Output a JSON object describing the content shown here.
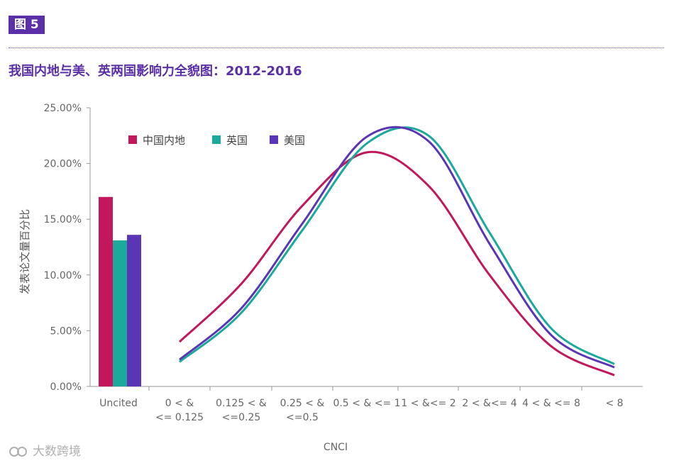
{
  "header": {
    "figure_label": "图 5",
    "title": "我国内地与美、英两国影响力全貌图：2012-2016"
  },
  "watermark": {
    "text": "大数跨境"
  },
  "colors": {
    "china": "#c2185b",
    "uk": "#1aa99a",
    "us": "#5a35b5",
    "axis": "#888888",
    "accent": "#5a2fa8"
  },
  "chart_data": {
    "type": "bar+line",
    "title": "我国内地与美、英两国影响力全貌图：2012-2016",
    "xlabel": "CNCI",
    "ylabel": "发表论文量百分比",
    "ylim": [
      0,
      25
    ],
    "yticks": [
      "0.00%",
      "5.00%",
      "10.00%",
      "15.00%",
      "20.00%",
      "25.00%"
    ],
    "uncited_label": "Uncited",
    "line_categories": [
      "0 < & <= 0.125",
      "0.125 < & <=0.25",
      "0.25 < & <=0.5",
      "0.5 < & <= 1",
      "1 < &<= 2",
      "2 < &<= 4",
      "4 < & <= 8",
      "< 8"
    ],
    "legend": [
      "中国内地",
      "英国",
      "美国"
    ],
    "series": [
      {
        "name": "中国内地",
        "color": "#c2185b",
        "uncited": 17.0,
        "values": [
          4.0,
          9.2,
          16.2,
          21.0,
          18.0,
          10.0,
          3.6,
          1.0
        ]
      },
      {
        "name": "英国",
        "color": "#1aa99a",
        "uncited": 13.1,
        "values": [
          2.2,
          6.6,
          14.0,
          21.8,
          22.5,
          13.8,
          5.2,
          2.0
        ]
      },
      {
        "name": "美国",
        "color": "#5a35b5",
        "uncited": 13.6,
        "values": [
          2.4,
          7.0,
          14.6,
          22.4,
          22.0,
          12.8,
          4.6,
          1.7
        ]
      }
    ]
  }
}
